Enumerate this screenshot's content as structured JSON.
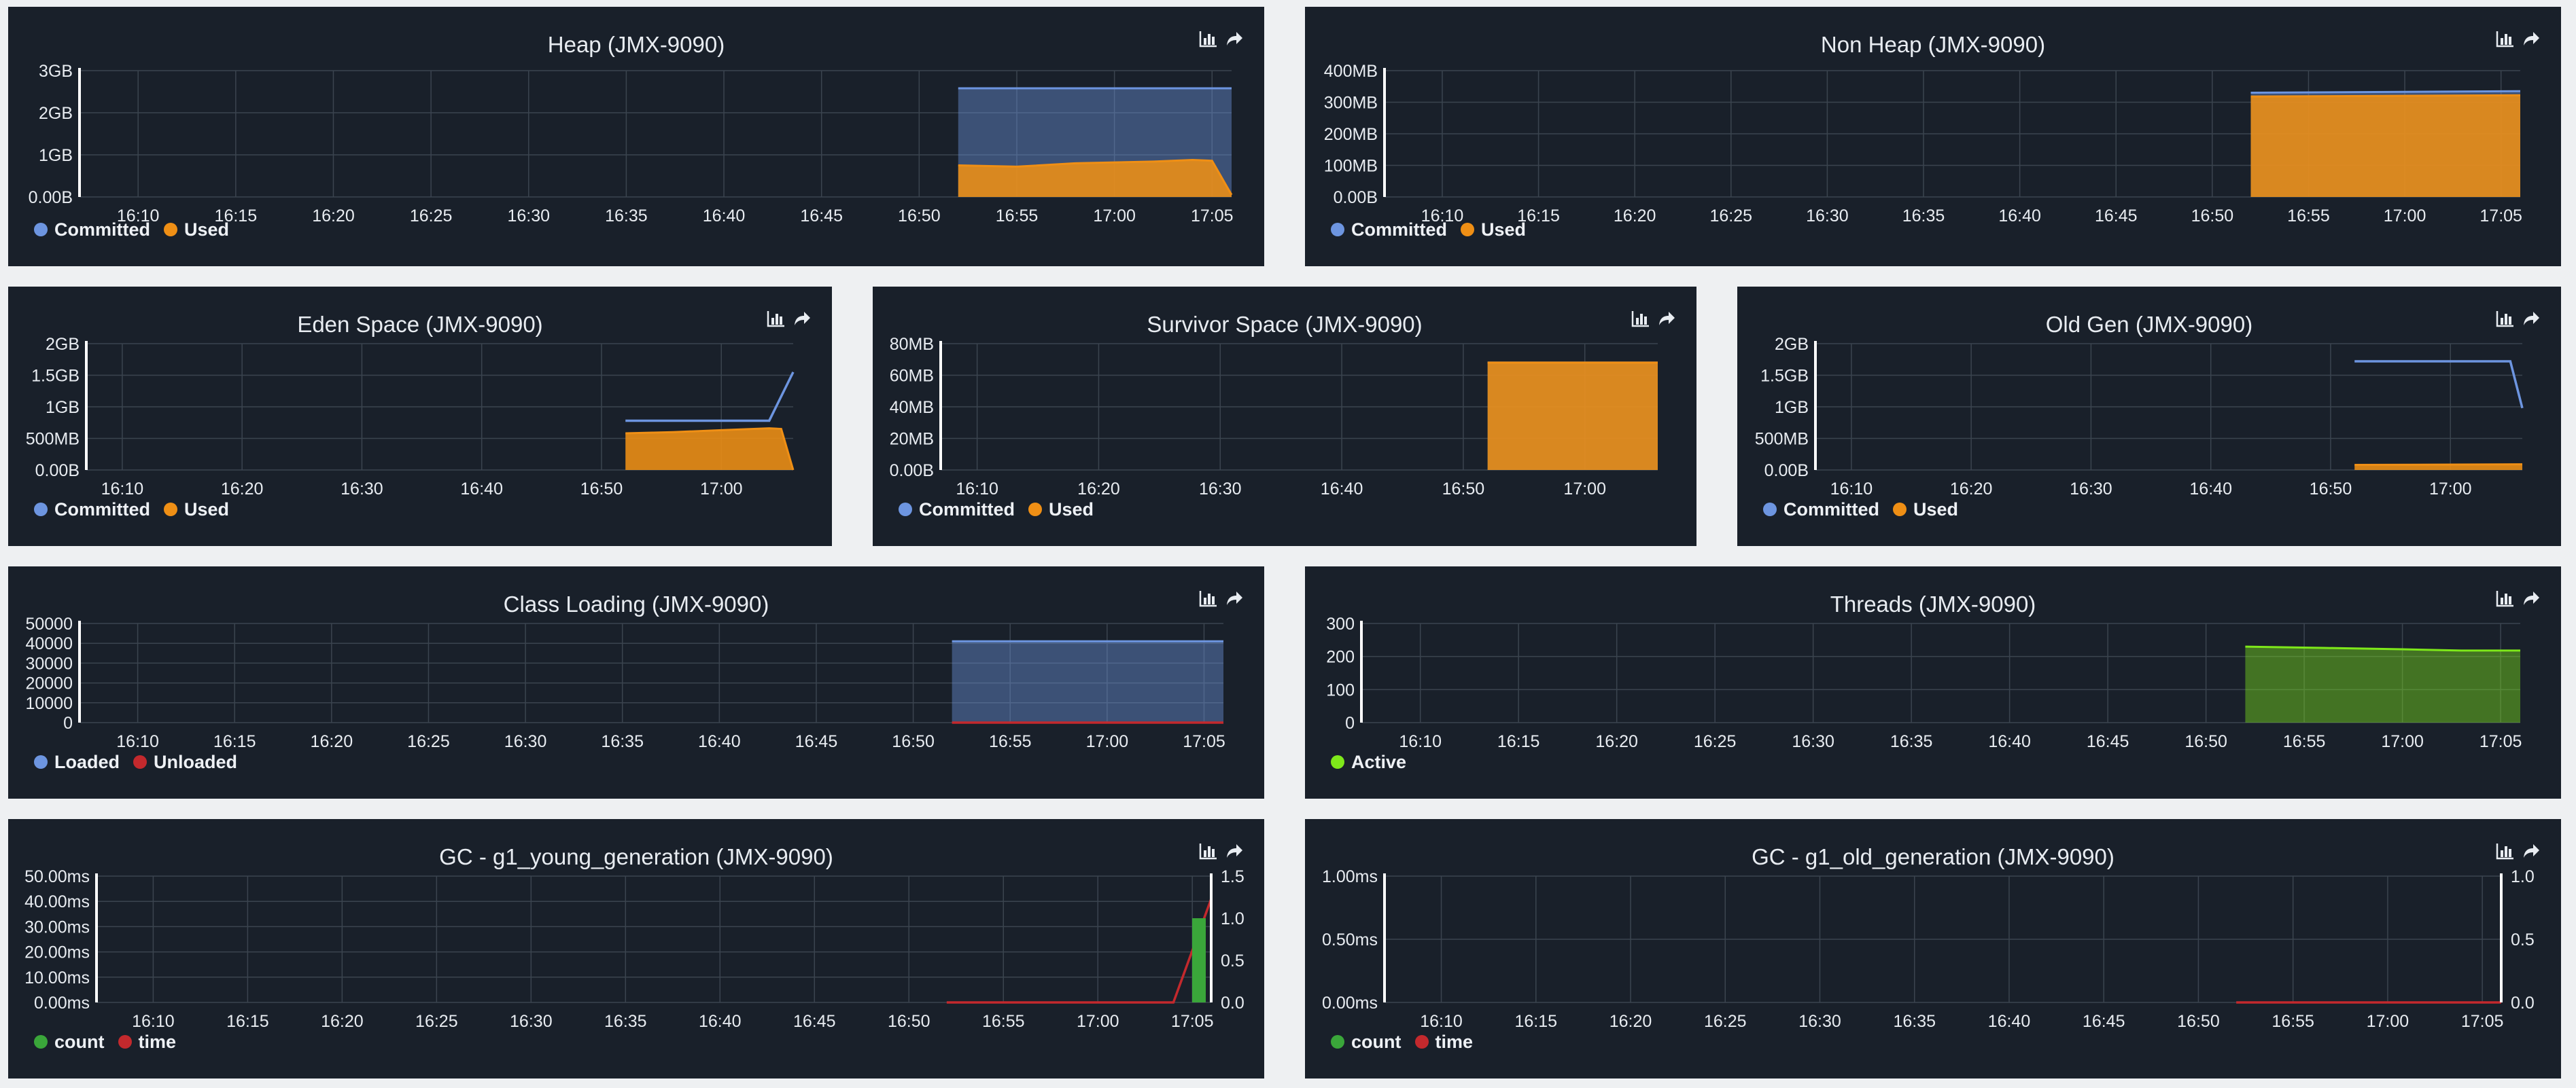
{
  "colors": {
    "committed": "#6d95e0",
    "used": "#ef8f15",
    "loaded": "#6d95e0",
    "unloaded": "#c3292d",
    "active": "#7ee81a",
    "count": "#3aa63a",
    "time": "#c3292d"
  },
  "icons": [
    "bar-chart-icon",
    "share-icon"
  ],
  "panels": [
    {
      "title": "Heap (JMX-9090)",
      "legend": [
        {
          "label": "Committed",
          "color": "#6d95e0"
        },
        {
          "label": "Used",
          "color": "#ef8f15"
        }
      ],
      "chart_data": {
        "type": "area",
        "x_ticks": [
          "16:10",
          "16:15",
          "16:20",
          "16:25",
          "16:30",
          "16:35",
          "16:40",
          "16:45",
          "16:50",
          "16:55",
          "17:00",
          "17:05"
        ],
        "x_start": "16:07",
        "x_end": "17:06",
        "y_ticks": [
          "0.00B",
          "1GB",
          "2GB",
          "3GB"
        ],
        "y_max": 3,
        "series": [
          {
            "name": "Committed",
            "kind": "area",
            "color": "#6d95e0",
            "points": [
              [
                "16:52",
                2.58
              ],
              [
                "17:06",
                2.58
              ]
            ]
          },
          {
            "name": "Used",
            "kind": "area",
            "color": "#ef8f15",
            "points": [
              [
                "16:52",
                0.75
              ],
              [
                "16:55",
                0.72
              ],
              [
                "16:58",
                0.8
              ],
              [
                "17:00",
                0.82
              ],
              [
                "17:02",
                0.84
              ],
              [
                "17:04",
                0.88
              ],
              [
                "17:05",
                0.86
              ],
              [
                "17:06",
                0.05
              ]
            ]
          }
        ]
      }
    },
    {
      "title": "Non Heap (JMX-9090)",
      "legend": [
        {
          "label": "Committed",
          "color": "#6d95e0"
        },
        {
          "label": "Used",
          "color": "#ef8f15"
        }
      ],
      "chart_data": {
        "type": "area",
        "x_ticks": [
          "16:10",
          "16:15",
          "16:20",
          "16:25",
          "16:30",
          "16:35",
          "16:40",
          "16:45",
          "16:50",
          "16:55",
          "17:00",
          "17:05"
        ],
        "x_start": "16:07",
        "x_end": "17:06",
        "y_ticks": [
          "0.00B",
          "100MB",
          "200MB",
          "300MB",
          "400MB"
        ],
        "y_max": 400,
        "series": [
          {
            "name": "Committed",
            "kind": "area",
            "color": "#6d95e0",
            "points": [
              [
                "16:52",
                330
              ],
              [
                "17:06",
                335
              ]
            ]
          },
          {
            "name": "Used",
            "kind": "area",
            "color": "#ef8f15",
            "points": [
              [
                "16:52",
                318
              ],
              [
                "17:06",
                322
              ]
            ]
          }
        ]
      }
    },
    {
      "title": "Eden Space (JMX-9090)",
      "legend": [
        {
          "label": "Committed",
          "color": "#6d95e0"
        },
        {
          "label": "Used",
          "color": "#ef8f15"
        }
      ],
      "chart_data": {
        "type": "area",
        "x_ticks": [
          "16:10",
          "16:20",
          "16:30",
          "16:40",
          "16:50",
          "17:00"
        ],
        "x_start": "16:07",
        "x_end": "17:06",
        "y_ticks": [
          "0.00B",
          "500MB",
          "1GB",
          "1.5GB",
          "2GB"
        ],
        "y_max": 2,
        "series": [
          {
            "name": "Committed",
            "kind": "line",
            "color": "#6d95e0",
            "points": [
              [
                "16:52",
                0.78
              ],
              [
                "17:04",
                0.78
              ],
              [
                "17:06",
                1.55
              ]
            ]
          },
          {
            "name": "Used",
            "kind": "area",
            "color": "#ef8f15",
            "points": [
              [
                "16:52",
                0.58
              ],
              [
                "16:56",
                0.6
              ],
              [
                "17:00",
                0.63
              ],
              [
                "17:04",
                0.66
              ],
              [
                "17:05",
                0.65
              ],
              [
                "17:06",
                0.0
              ]
            ]
          }
        ]
      }
    },
    {
      "title": "Survivor Space (JMX-9090)",
      "legend": [
        {
          "label": "Committed",
          "color": "#6d95e0"
        },
        {
          "label": "Used",
          "color": "#ef8f15"
        }
      ],
      "chart_data": {
        "type": "area",
        "x_ticks": [
          "16:10",
          "16:20",
          "16:30",
          "16:40",
          "16:50",
          "17:00"
        ],
        "x_start": "16:07",
        "x_end": "17:06",
        "y_ticks": [
          "0.00B",
          "20MB",
          "40MB",
          "60MB",
          "80MB"
        ],
        "y_max": 80,
        "series": [
          {
            "name": "Committed",
            "kind": "area",
            "color": "#6d95e0",
            "points": [
              [
                "16:52",
                68
              ],
              [
                "17:06",
                68
              ]
            ]
          },
          {
            "name": "Used",
            "kind": "area",
            "color": "#ef8f15",
            "points": [
              [
                "16:52",
                68
              ],
              [
                "17:06",
                68
              ]
            ]
          }
        ]
      }
    },
    {
      "title": "Old Gen (JMX-9090)",
      "legend": [
        {
          "label": "Committed",
          "color": "#6d95e0"
        },
        {
          "label": "Used",
          "color": "#ef8f15"
        }
      ],
      "chart_data": {
        "type": "area",
        "x_ticks": [
          "16:10",
          "16:20",
          "16:30",
          "16:40",
          "16:50",
          "17:00"
        ],
        "x_start": "16:07",
        "x_end": "17:06",
        "y_ticks": [
          "0.00B",
          "500MB",
          "1GB",
          "1.5GB",
          "2GB"
        ],
        "y_max": 2,
        "series": [
          {
            "name": "Committed",
            "kind": "line",
            "color": "#6d95e0",
            "points": [
              [
                "16:52",
                1.72
              ],
              [
                "17:05",
                1.72
              ],
              [
                "17:06",
                0.98
              ]
            ]
          },
          {
            "name": "Used",
            "kind": "area",
            "color": "#ef8f15",
            "points": [
              [
                "16:52",
                0.08
              ],
              [
                "17:06",
                0.09
              ]
            ]
          }
        ]
      }
    },
    {
      "title": "Class Loading (JMX-9090)",
      "legend": [
        {
          "label": "Loaded",
          "color": "#6d95e0"
        },
        {
          "label": "Unloaded",
          "color": "#c3292d"
        }
      ],
      "chart_data": {
        "type": "area",
        "x_ticks": [
          "16:10",
          "16:15",
          "16:20",
          "16:25",
          "16:30",
          "16:35",
          "16:40",
          "16:45",
          "16:50",
          "16:55",
          "17:00",
          "17:05"
        ],
        "x_start": "16:07",
        "x_end": "17:06",
        "y_ticks": [
          "0",
          "10000",
          "20000",
          "30000",
          "40000",
          "50000"
        ],
        "y_max": 50000,
        "series": [
          {
            "name": "Loaded",
            "kind": "area",
            "color": "#6d95e0",
            "points": [
              [
                "16:52",
                41000
              ],
              [
                "17:06",
                41000
              ]
            ]
          },
          {
            "name": "Unloaded",
            "kind": "line",
            "color": "#c3292d",
            "points": [
              [
                "16:52",
                0
              ],
              [
                "17:06",
                0
              ]
            ]
          }
        ]
      }
    },
    {
      "title": "Threads (JMX-9090)",
      "legend": [
        {
          "label": "Active",
          "color": "#7ee81a"
        }
      ],
      "chart_data": {
        "type": "area",
        "x_ticks": [
          "16:10",
          "16:15",
          "16:20",
          "16:25",
          "16:30",
          "16:35",
          "16:40",
          "16:45",
          "16:50",
          "16:55",
          "17:00",
          "17:05"
        ],
        "x_start": "16:07",
        "x_end": "17:06",
        "y_ticks": [
          "0",
          "100",
          "200",
          "300"
        ],
        "y_max": 300,
        "series": [
          {
            "name": "Active",
            "kind": "area",
            "color": "#7ee81a",
            "points": [
              [
                "16:52",
                230
              ],
              [
                "16:56",
                226
              ],
              [
                "17:00",
                222
              ],
              [
                "17:03",
                218
              ],
              [
                "17:06",
                218
              ]
            ]
          }
        ]
      }
    },
    {
      "title": "GC - g1_young_generation (JMX-9090)",
      "legend": [
        {
          "label": "count",
          "color": "#3aa63a"
        },
        {
          "label": "time",
          "color": "#c3292d"
        }
      ],
      "chart_data": {
        "type": "bar",
        "x_ticks": [
          "16:10",
          "16:15",
          "16:20",
          "16:25",
          "16:30",
          "16:35",
          "16:40",
          "16:45",
          "16:50",
          "16:55",
          "17:00",
          "17:05"
        ],
        "x_start": "16:07",
        "x_end": "17:06",
        "y_ticks": [
          "0.00ms",
          "10.00ms",
          "20.00ms",
          "30.00ms",
          "40.00ms",
          "50.00ms"
        ],
        "y_max": 50,
        "y2_ticks": [
          "0.0",
          "0.5",
          "1.0",
          "1.5"
        ],
        "y2_max": 1.5,
        "series": [
          {
            "name": "time",
            "kind": "line",
            "color": "#c3292d",
            "axis": "left",
            "points": [
              [
                "16:52",
                0
              ],
              [
                "17:04",
                0
              ],
              [
                "17:06",
                41
              ]
            ]
          },
          {
            "name": "count",
            "kind": "bar",
            "color": "#3aa63a",
            "axis": "right",
            "points": [
              [
                "17:06",
                1.0
              ]
            ]
          }
        ]
      }
    },
    {
      "title": "GC - g1_old_generation (JMX-9090)",
      "legend": [
        {
          "label": "count",
          "color": "#3aa63a"
        },
        {
          "label": "time",
          "color": "#c3292d"
        }
      ],
      "chart_data": {
        "type": "line",
        "x_ticks": [
          "16:10",
          "16:15",
          "16:20",
          "16:25",
          "16:30",
          "16:35",
          "16:40",
          "16:45",
          "16:50",
          "16:55",
          "17:00",
          "17:05"
        ],
        "x_start": "16:07",
        "x_end": "17:06",
        "y_ticks": [
          "0.00ms",
          "0.50ms",
          "1.00ms"
        ],
        "y_max": 1,
        "y2_ticks": [
          "0.0",
          "0.5",
          "1.0"
        ],
        "y2_max": 1,
        "series": [
          {
            "name": "time",
            "kind": "line",
            "color": "#c3292d",
            "axis": "left",
            "points": [
              [
                "16:52",
                0
              ],
              [
                "17:06",
                0
              ]
            ]
          },
          {
            "name": "count",
            "kind": "line",
            "color": "#3aa63a",
            "axis": "right",
            "points": [
              [
                "17:06",
                0
              ]
            ]
          }
        ]
      }
    }
  ]
}
